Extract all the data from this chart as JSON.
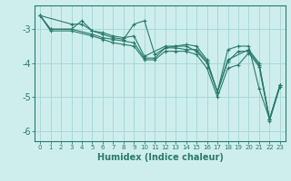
{
  "title": "",
  "xlabel": "Humidex (Indice chaleur)",
  "background_color": "#ceeeed",
  "grid_color": "#a8d8d8",
  "line_color": "#2a7a6a",
  "xlim": [
    -0.5,
    23.5
  ],
  "ylim": [
    -6.3,
    -2.3
  ],
  "xticks": [
    0,
    1,
    2,
    3,
    4,
    5,
    6,
    7,
    8,
    9,
    10,
    11,
    12,
    13,
    14,
    15,
    16,
    17,
    18,
    19,
    20,
    21,
    22,
    23
  ],
  "yticks": [
    -6,
    -5,
    -4,
    -3
  ],
  "series": [
    [
      [
        0,
        -2.6
      ],
      [
        1,
        -3.0
      ],
      [
        3,
        -3.0
      ],
      [
        5,
        -3.15
      ],
      [
        6,
        -3.25
      ],
      [
        7,
        -3.3
      ],
      [
        8,
        -3.35
      ],
      [
        9,
        -3.4
      ],
      [
        10,
        -3.85
      ],
      [
        11,
        -3.85
      ],
      [
        12,
        -3.55
      ],
      [
        13,
        -3.55
      ],
      [
        14,
        -3.6
      ],
      [
        15,
        -3.6
      ],
      [
        16,
        -3.95
      ],
      [
        17,
        -4.85
      ],
      [
        18,
        -3.95
      ],
      [
        19,
        -3.65
      ],
      [
        20,
        -3.65
      ],
      [
        21,
        -4.05
      ],
      [
        22,
        -5.65
      ],
      [
        23,
        -4.65
      ]
    ],
    [
      [
        0,
        -2.6
      ],
      [
        3,
        -2.85
      ],
      [
        4,
        -2.85
      ],
      [
        5,
        -3.05
      ],
      [
        6,
        -3.1
      ],
      [
        7,
        -3.2
      ],
      [
        8,
        -3.25
      ],
      [
        9,
        -3.2
      ],
      [
        10,
        -3.8
      ],
      [
        12,
        -3.5
      ],
      [
        13,
        -3.5
      ],
      [
        14,
        -3.45
      ],
      [
        15,
        -3.5
      ],
      [
        16,
        -3.9
      ],
      [
        17,
        -4.85
      ],
      [
        18,
        -3.9
      ],
      [
        20,
        -3.6
      ],
      [
        21,
        -4.0
      ],
      [
        22,
        -5.65
      ],
      [
        23,
        -4.65
      ]
    ],
    [
      [
        0,
        -2.6
      ],
      [
        1,
        -3.0
      ],
      [
        3,
        -3.0
      ],
      [
        4,
        -2.75
      ],
      [
        5,
        -3.05
      ],
      [
        6,
        -3.15
      ],
      [
        7,
        -3.25
      ],
      [
        8,
        -3.3
      ],
      [
        9,
        -2.85
      ],
      [
        10,
        -2.75
      ],
      [
        11,
        -3.75
      ],
      [
        12,
        -3.55
      ],
      [
        13,
        -3.5
      ],
      [
        14,
        -3.5
      ],
      [
        15,
        -3.65
      ],
      [
        16,
        -4.0
      ],
      [
        17,
        -4.85
      ],
      [
        18,
        -3.6
      ],
      [
        19,
        -3.5
      ],
      [
        20,
        -3.5
      ],
      [
        21,
        -4.75
      ],
      [
        22,
        -5.65
      ],
      [
        23,
        -4.65
      ]
    ],
    [
      [
        0,
        -2.6
      ],
      [
        1,
        -3.05
      ],
      [
        3,
        -3.05
      ],
      [
        5,
        -3.2
      ],
      [
        6,
        -3.3
      ],
      [
        7,
        -3.4
      ],
      [
        8,
        -3.45
      ],
      [
        9,
        -3.5
      ],
      [
        10,
        -3.9
      ],
      [
        11,
        -3.9
      ],
      [
        12,
        -3.65
      ],
      [
        13,
        -3.65
      ],
      [
        14,
        -3.65
      ],
      [
        15,
        -3.75
      ],
      [
        16,
        -4.15
      ],
      [
        17,
        -5.0
      ],
      [
        18,
        -4.15
      ],
      [
        19,
        -4.05
      ],
      [
        20,
        -3.7
      ],
      [
        21,
        -4.1
      ],
      [
        22,
        -5.7
      ],
      [
        23,
        -4.7
      ]
    ]
  ]
}
